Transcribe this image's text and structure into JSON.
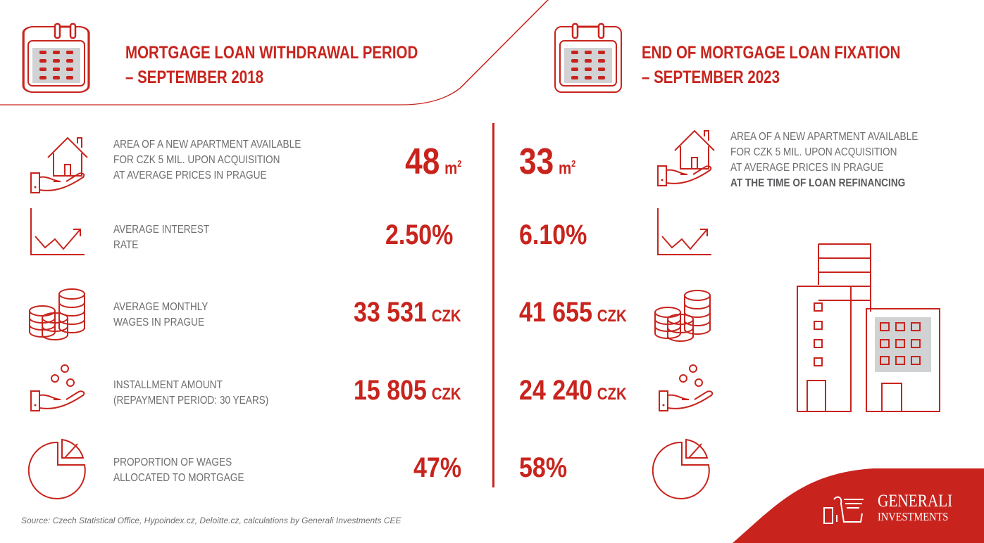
{
  "left": {
    "title_line1": "MORTGAGE LOAN WITHDRAWAL PERIOD",
    "title_line2": "– SEPTEMBER 2018"
  },
  "right": {
    "title_line1": "END OF MORTGAGE LOAN FIXATION",
    "title_line2": "– SEPTEMBER 2023"
  },
  "rows": [
    {
      "icon": "house-in-hand-icon",
      "label_lines": [
        "AREA OF A NEW APARTMENT AVAILABLE",
        "FOR CZK 5 MIL. UPON  ACQUISITION",
        "AT AVERAGE PRICES IN PRAGUE"
      ],
      "right_label_extra": "AT THE TIME OF LOAN REFINANCING",
      "value_2018": "48",
      "value_2023": "33",
      "unit": "m",
      "unit_sup": "2"
    },
    {
      "icon": "rising-chart-icon",
      "label_lines": [
        "AVERAGE INTEREST",
        "RATE"
      ],
      "value_2018": "2.50%",
      "value_2023": "6.10%"
    },
    {
      "icon": "coins-stack-icon",
      "label_lines": [
        "AVERAGE MONTHLY",
        "WAGES IN PRAGUE"
      ],
      "value_2018": "33 531",
      "value_2023": "41 655",
      "unit": "CZK"
    },
    {
      "icon": "coins-in-hand-icon",
      "label_lines": [
        "INSTALLMENT AMOUNT",
        "(REPAYMENT PERIOD: 30 YEARS)"
      ],
      "value_2018": "15 805",
      "value_2023": "24 240",
      "unit": "CZK"
    },
    {
      "icon": "pie-chart-icon",
      "label_lines": [
        "PROPORTION OF WAGES",
        "ALLOCATED TO MORTGAGE"
      ],
      "value_2018": "47%",
      "value_2023": "58%"
    }
  ],
  "source": "Source: Czech Statistical Office, Hypoindex.cz, Deloitte.cz, calculations by Generali Investments CEE",
  "logo": {
    "line1": "GENERALI",
    "line2": "INVESTMENTS"
  },
  "colors": {
    "accent": "#c8241d",
    "text": "#6d6e70",
    "icon_fill": "#d1d2d4"
  }
}
